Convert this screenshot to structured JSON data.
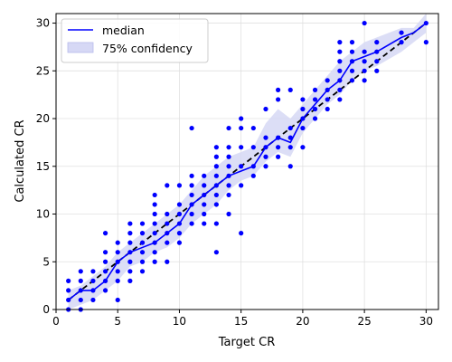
{
  "chart_data": {
    "type": "line",
    "title": "",
    "xlabel": "Target CR",
    "ylabel": "Calculated CR",
    "xlim": [
      0,
      31
    ],
    "ylim": [
      0,
      31
    ],
    "xticks": [
      0,
      5,
      10,
      15,
      20,
      25,
      30
    ],
    "yticks": [
      0,
      5,
      10,
      15,
      20,
      25,
      30
    ],
    "grid": true,
    "legend": {
      "position": "top-left",
      "entries": [
        "median",
        "75% confidency"
      ]
    },
    "colors": {
      "median": "#0000ff",
      "band": "#d6d8f5",
      "points": "#0000ff",
      "reference": "#000000"
    },
    "series": [
      {
        "name": "median",
        "x": [
          1,
          2,
          3,
          4,
          5,
          6,
          7,
          8,
          9,
          10,
          11,
          12,
          13,
          14,
          15,
          16,
          17,
          18,
          19,
          20,
          21,
          22,
          23,
          24,
          25,
          26,
          28,
          29,
          30
        ],
        "y": [
          1,
          2,
          2,
          3,
          5,
          6,
          6.5,
          7,
          8,
          9,
          11,
          12,
          13,
          14,
          14.5,
          15,
          17,
          18,
          17.5,
          20,
          21.5,
          23,
          24,
          26,
          26.5,
          27,
          28.5,
          29,
          30
        ]
      },
      {
        "name": "75% confidency",
        "x": [
          1,
          2,
          3,
          4,
          5,
          6,
          7,
          8,
          9,
          10,
          11,
          12,
          13,
          14,
          15,
          16,
          17,
          18,
          19,
          20,
          21,
          22,
          23,
          24,
          25,
          26,
          28,
          29,
          30
        ],
        "lower": [
          0,
          0.5,
          1,
          2,
          3,
          4.5,
          5,
          6,
          6.5,
          7.5,
          9,
          10,
          11,
          12.5,
          13.5,
          14,
          15.5,
          16.5,
          16,
          18.5,
          20,
          21.5,
          22.5,
          24,
          25,
          25.5,
          27,
          28,
          29
        ],
        "upper": [
          2,
          2.5,
          3.5,
          4.5,
          6,
          7,
          8,
          9,
          10,
          11,
          12.5,
          14,
          15,
          16,
          16.5,
          17,
          19.5,
          21,
          20,
          21.5,
          23,
          24.5,
          26,
          27,
          28,
          28.5,
          29.5,
          29.5,
          31
        ]
      },
      {
        "name": "",
        "style": "dashed reference y = x",
        "x": [
          1,
          30
        ],
        "y": [
          1,
          30
        ]
      }
    ],
    "scatter": [
      [
        1,
        0
      ],
      [
        1,
        1
      ],
      [
        1,
        2
      ],
      [
        1,
        3
      ],
      [
        2,
        0
      ],
      [
        2,
        1
      ],
      [
        2,
        2
      ],
      [
        2,
        3
      ],
      [
        2,
        4
      ],
      [
        3,
        1
      ],
      [
        3,
        2
      ],
      [
        3,
        3
      ],
      [
        3,
        4
      ],
      [
        4,
        2
      ],
      [
        4,
        3
      ],
      [
        4,
        4
      ],
      [
        4,
        5
      ],
      [
        4,
        6
      ],
      [
        4,
        8
      ],
      [
        5,
        1
      ],
      [
        5,
        3
      ],
      [
        5,
        4
      ],
      [
        5,
        5
      ],
      [
        5,
        6
      ],
      [
        5,
        7
      ],
      [
        6,
        3
      ],
      [
        6,
        4
      ],
      [
        6,
        5
      ],
      [
        6,
        6
      ],
      [
        6,
        7
      ],
      [
        6,
        8
      ],
      [
        6,
        9
      ],
      [
        7,
        4
      ],
      [
        7,
        5
      ],
      [
        7,
        6
      ],
      [
        7,
        7
      ],
      [
        7,
        8
      ],
      [
        7,
        9
      ],
      [
        8,
        5
      ],
      [
        8,
        6
      ],
      [
        8,
        7
      ],
      [
        8,
        8
      ],
      [
        8,
        9
      ],
      [
        8,
        10
      ],
      [
        8,
        11
      ],
      [
        8,
        12
      ],
      [
        9,
        5
      ],
      [
        9,
        7
      ],
      [
        9,
        8
      ],
      [
        9,
        9
      ],
      [
        9,
        10
      ],
      [
        9,
        13
      ],
      [
        10,
        7
      ],
      [
        10,
        8
      ],
      [
        10,
        9
      ],
      [
        10,
        10
      ],
      [
        10,
        11
      ],
      [
        10,
        13
      ],
      [
        11,
        9
      ],
      [
        11,
        10
      ],
      [
        11,
        11
      ],
      [
        11,
        12
      ],
      [
        11,
        13
      ],
      [
        11,
        14
      ],
      [
        11,
        19
      ],
      [
        12,
        9
      ],
      [
        12,
        10
      ],
      [
        12,
        11
      ],
      [
        12,
        12
      ],
      [
        12,
        13
      ],
      [
        12,
        14
      ],
      [
        13,
        6
      ],
      [
        13,
        9
      ],
      [
        13,
        11
      ],
      [
        13,
        12
      ],
      [
        13,
        13
      ],
      [
        13,
        14
      ],
      [
        13,
        15
      ],
      [
        13,
        16
      ],
      [
        13,
        17
      ],
      [
        14,
        10
      ],
      [
        14,
        12
      ],
      [
        14,
        13
      ],
      [
        14,
        14
      ],
      [
        14,
        15
      ],
      [
        14,
        16
      ],
      [
        14,
        17
      ],
      [
        14,
        19
      ],
      [
        15,
        8
      ],
      [
        15,
        13
      ],
      [
        15,
        15
      ],
      [
        15,
        17
      ],
      [
        15,
        19
      ],
      [
        15,
        20
      ],
      [
        16,
        14
      ],
      [
        16,
        15
      ],
      [
        16,
        17
      ],
      [
        16,
        19
      ],
      [
        17,
        15
      ],
      [
        17,
        16
      ],
      [
        17,
        17
      ],
      [
        17,
        18
      ],
      [
        17,
        21
      ],
      [
        18,
        16
      ],
      [
        18,
        17
      ],
      [
        18,
        18
      ],
      [
        18,
        22
      ],
      [
        18,
        23
      ],
      [
        19,
        15
      ],
      [
        19,
        17
      ],
      [
        19,
        18
      ],
      [
        19,
        19
      ],
      [
        19,
        23
      ],
      [
        20,
        17
      ],
      [
        20,
        19
      ],
      [
        20,
        20
      ],
      [
        20,
        21
      ],
      [
        20,
        22
      ],
      [
        21,
        20
      ],
      [
        21,
        21
      ],
      [
        21,
        22
      ],
      [
        21,
        23
      ],
      [
        22,
        21
      ],
      [
        22,
        22
      ],
      [
        22,
        23
      ],
      [
        22,
        24
      ],
      [
        23,
        22
      ],
      [
        23,
        23
      ],
      [
        23,
        24
      ],
      [
        23,
        25
      ],
      [
        23,
        26
      ],
      [
        23,
        27
      ],
      [
        23,
        28
      ],
      [
        24,
        24
      ],
      [
        24,
        25
      ],
      [
        24,
        26
      ],
      [
        24,
        27
      ],
      [
        24,
        28
      ],
      [
        25,
        24
      ],
      [
        25,
        25
      ],
      [
        25,
        26
      ],
      [
        25,
        27
      ],
      [
        25,
        30
      ],
      [
        26,
        25
      ],
      [
        26,
        26
      ],
      [
        26,
        27
      ],
      [
        26,
        28
      ],
      [
        28,
        28
      ],
      [
        28,
        29
      ],
      [
        30,
        28
      ],
      [
        30,
        30
      ]
    ]
  }
}
